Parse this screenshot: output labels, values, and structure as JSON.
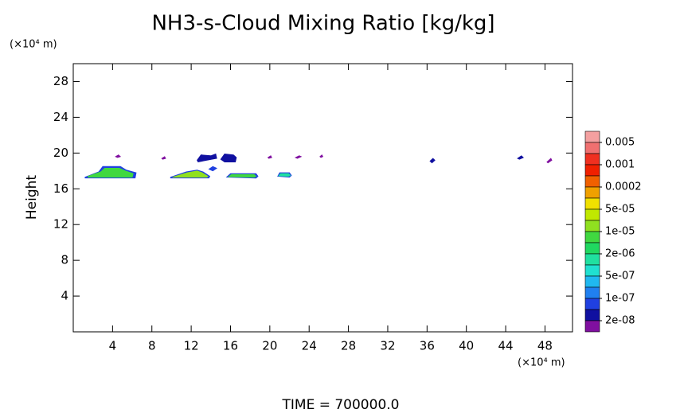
{
  "chart_data": {
    "type": "contour",
    "title": "NH3-s-Cloud Mixing Ratio [kg/kg]",
    "y_unit": "(×10⁴ m)",
    "x_unit": "(×10⁴ m)",
    "ylabel": "Height",
    "footer": "TIME = 700000.0",
    "xlim": [
      0,
      50.8
    ],
    "ylim": [
      0,
      30
    ],
    "xticks": [
      4,
      8,
      12,
      16,
      20,
      24,
      28,
      32,
      36,
      40,
      44,
      48
    ],
    "yticks": [
      4,
      8,
      12,
      16,
      20,
      24,
      28
    ],
    "colorbar": {
      "colors": [
        "#f4a0a0",
        "#f07070",
        "#f03020",
        "#f02000",
        "#f06000",
        "#f0a000",
        "#f0e000",
        "#c0e800",
        "#90e020",
        "#40d840",
        "#20d860",
        "#20e0a0",
        "#20e0d0",
        "#20b8f0",
        "#2080f0",
        "#2040e0",
        "#1010a0",
        "#8010a0"
      ],
      "ticks": [
        0.005,
        0.001,
        0.0002,
        {
          "value": 5e-05,
          "label": "5e-05"
        },
        {
          "value": 1e-05,
          "label": "1e-05"
        },
        {
          "value": 2e-06,
          "label": "2e-06"
        },
        {
          "value": 5e-07,
          "label": "5e-07"
        },
        {
          "value": 1e-07,
          "label": "1e-07"
        },
        {
          "value": 2e-08,
          "label": "2e-08"
        }
      ]
    },
    "contours": [
      {
        "color": "#2040e0",
        "x": [
          1.2,
          2.6,
          3.0,
          4.8,
          5.4,
          6.4,
          6.3,
          1.2
        ],
        "y": [
          17.3,
          17.9,
          18.5,
          18.5,
          18.1,
          17.8,
          17.2,
          17.2
        ]
      },
      {
        "color": "#40d840",
        "x": [
          1.5,
          2.8,
          3.2,
          4.7,
          5.3,
          6.1,
          6.0,
          1.5
        ],
        "y": [
          17.4,
          17.9,
          18.3,
          18.3,
          18.0,
          17.7,
          17.3,
          17.3
        ]
      },
      {
        "color": "#2040e0",
        "x": [
          9.9,
          11.5,
          12.6,
          13.2,
          13.9,
          13.8,
          9.9
        ],
        "y": [
          17.3,
          17.9,
          18.1,
          17.9,
          17.4,
          17.2,
          17.2
        ]
      },
      {
        "color": "#90e020",
        "x": [
          10.1,
          11.6,
          12.6,
          13.1,
          13.7,
          13.6,
          10.1
        ],
        "y": [
          17.3,
          17.8,
          18.0,
          17.8,
          17.4,
          17.3,
          17.3
        ]
      },
      {
        "color": "#2040e0",
        "x": [
          15.6,
          16.0,
          18.6,
          18.8,
          18.6,
          15.6
        ],
        "y": [
          17.3,
          17.7,
          17.7,
          17.4,
          17.2,
          17.3
        ]
      },
      {
        "color": "#40d840",
        "x": [
          15.8,
          16.1,
          18.4,
          18.6,
          18.4,
          15.8
        ],
        "y": [
          17.35,
          17.6,
          17.6,
          17.4,
          17.3,
          17.35
        ]
      },
      {
        "color": "#2040e0",
        "x": [
          20.8,
          21.0,
          22.0,
          22.2,
          22.0,
          20.8
        ],
        "y": [
          17.4,
          17.8,
          17.8,
          17.5,
          17.3,
          17.4
        ]
      },
      {
        "color": "#20e0a0",
        "x": [
          20.9,
          21.1,
          21.9,
          22.1,
          21.9,
          20.9
        ],
        "y": [
          17.45,
          17.7,
          17.7,
          17.5,
          17.4,
          17.45
        ]
      },
      {
        "color": "#2040e0",
        "x": [
          13.8,
          14.2,
          14.6,
          14.2,
          13.8
        ],
        "y": [
          18.2,
          18.5,
          18.3,
          18.0,
          18.2
        ]
      },
      {
        "color": "#1010a0",
        "x": [
          12.6,
          13.0,
          14.0,
          14.5,
          14.6,
          13.6,
          12.7,
          12.6
        ],
        "y": [
          19.2,
          19.8,
          19.7,
          19.9,
          19.4,
          19.2,
          19.0,
          19.2
        ]
      },
      {
        "color": "#1010a0",
        "x": [
          15.0,
          15.4,
          16.3,
          16.6,
          16.5,
          15.4,
          15.0
        ],
        "y": [
          19.3,
          19.9,
          19.8,
          19.5,
          19.0,
          19.0,
          19.3
        ]
      },
      {
        "color": "#8010a0",
        "x": [
          4.3,
          4.6,
          4.8,
          4.5,
          4.3
        ],
        "y": [
          19.6,
          19.8,
          19.6,
          19.5,
          19.6
        ]
      },
      {
        "color": "#8010a0",
        "x": [
          9.0,
          9.3,
          9.4,
          9.1,
          9.0
        ],
        "y": [
          19.4,
          19.6,
          19.4,
          19.3,
          19.4
        ]
      },
      {
        "color": "#8010a0",
        "x": [
          19.8,
          20.1,
          20.2,
          19.9,
          19.8
        ],
        "y": [
          19.5,
          19.7,
          19.5,
          19.4,
          19.5
        ]
      },
      {
        "color": "#8010a0",
        "x": [
          22.6,
          23.0,
          23.2,
          22.8,
          22.6
        ],
        "y": [
          19.5,
          19.7,
          19.6,
          19.4,
          19.5
        ]
      },
      {
        "color": "#8010a0",
        "x": [
          25.1,
          25.3,
          25.4,
          25.2,
          25.1
        ],
        "y": [
          19.6,
          19.8,
          19.6,
          19.5,
          19.6
        ]
      },
      {
        "color": "#1010a0",
        "x": [
          36.3,
          36.6,
          36.8,
          36.5,
          36.3
        ],
        "y": [
          19.1,
          19.4,
          19.2,
          18.9,
          19.1
        ]
      },
      {
        "color": "#1010a0",
        "x": [
          45.2,
          45.6,
          45.8,
          45.4,
          45.2
        ],
        "y": [
          19.4,
          19.7,
          19.5,
          19.3,
          19.4
        ]
      },
      {
        "color": "#8010a0",
        "x": [
          48.2,
          48.6,
          48.7,
          48.3,
          48.2
        ],
        "y": [
          19.0,
          19.4,
          19.2,
          18.9,
          19.0
        ]
      }
    ]
  }
}
